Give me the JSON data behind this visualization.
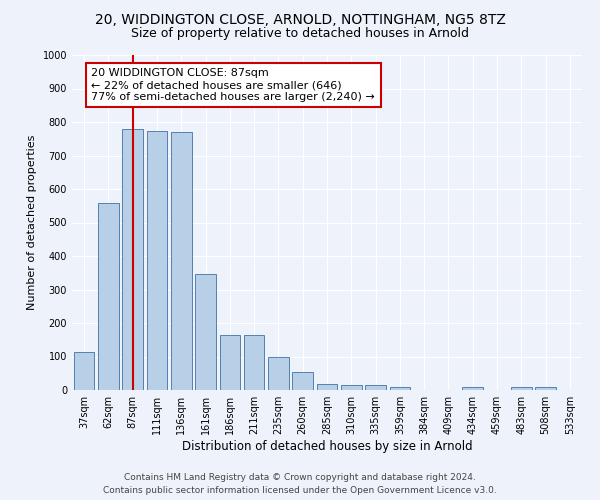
{
  "title1": "20, WIDDINGTON CLOSE, ARNOLD, NOTTINGHAM, NG5 8TZ",
  "title2": "Size of property relative to detached houses in Arnold",
  "xlabel": "Distribution of detached houses by size in Arnold",
  "ylabel": "Number of detached properties",
  "categories": [
    "37sqm",
    "62sqm",
    "87sqm",
    "111sqm",
    "136sqm",
    "161sqm",
    "186sqm",
    "211sqm",
    "235sqm",
    "260sqm",
    "285sqm",
    "310sqm",
    "335sqm",
    "359sqm",
    "384sqm",
    "409sqm",
    "434sqm",
    "459sqm",
    "483sqm",
    "508sqm",
    "533sqm"
  ],
  "values": [
    112,
    558,
    778,
    772,
    770,
    345,
    165,
    165,
    98,
    53,
    18,
    15,
    15,
    10,
    0,
    0,
    10,
    0,
    10,
    10,
    0
  ],
  "bar_color": "#b8cfe8",
  "bar_edge_color": "#5580b0",
  "highlight_index": 2,
  "highlight_line_color": "#cc0000",
  "annotation_text": "20 WIDDINGTON CLOSE: 87sqm\n← 22% of detached houses are smaller (646)\n77% of semi-detached houses are larger (2,240) →",
  "annotation_box_color": "#ffffff",
  "annotation_box_edge_color": "#cc0000",
  "ylim": [
    0,
    1000
  ],
  "yticks": [
    0,
    100,
    200,
    300,
    400,
    500,
    600,
    700,
    800,
    900,
    1000
  ],
  "footer1": "Contains HM Land Registry data © Crown copyright and database right 2024.",
  "footer2": "Contains public sector information licensed under the Open Government Licence v3.0.",
  "bg_color": "#eef2fa",
  "grid_color": "#ffffff",
  "title1_fontsize": 10,
  "title2_fontsize": 9,
  "xlabel_fontsize": 8.5,
  "ylabel_fontsize": 8,
  "tick_fontsize": 7,
  "annotation_fontsize": 8,
  "footer_fontsize": 6.5
}
